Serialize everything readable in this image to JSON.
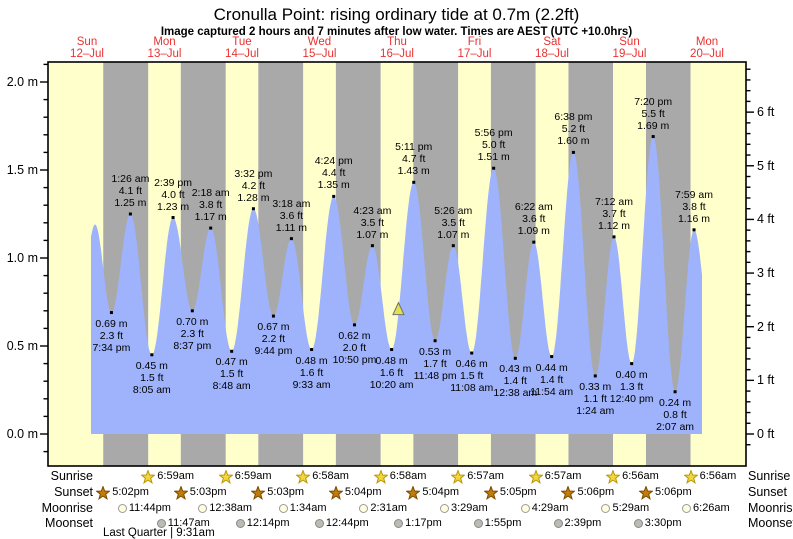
{
  "title": "Cronulla Point: rising  ordinary tide at 0.7m (2.2ft)",
  "subtitle": "Image captured 2 hours and 7 minutes after low water. Times are AEST (UTC +10.0hrs)",
  "colors": {
    "day_band": "#ffffcc",
    "night_band": "#a9a9a9",
    "tide_fill": "#9fb3fc",
    "date_red": "#e83232",
    "frame": "#000000",
    "sunrise_star_fill": "#f2d73c",
    "sunrise_star_stroke": "#b8960b",
    "sunset_star_fill": "#c47c08",
    "sunset_star_stroke": "#7a4a00",
    "moonrise_fill": "#ffffe0",
    "moonrise_stroke": "#999999",
    "moonset_fill": "#bcbcb4",
    "moonset_stroke": "#888888",
    "marker_fill": "#e2e24e",
    "marker_stroke": "#707070"
  },
  "days": [
    {
      "dow": "Sun",
      "date": "12–Jul"
    },
    {
      "dow": "Mon",
      "date": "13–Jul"
    },
    {
      "dow": "Tue",
      "date": "14–Jul"
    },
    {
      "dow": "Wed",
      "date": "15–Jul"
    },
    {
      "dow": "Thu",
      "date": "16–Jul"
    },
    {
      "dow": "Fri",
      "date": "17–Jul"
    },
    {
      "dow": "Sat",
      "date": "18–Jul"
    },
    {
      "dow": "Sun",
      "date": "19–Jul"
    },
    {
      "dow": "Mon",
      "date": "20–Jul"
    }
  ],
  "axes": {
    "left": [
      {
        "value": 0,
        "label": "0.0 m"
      },
      {
        "value": 0.5,
        "label": "0.5 m"
      },
      {
        "value": 1,
        "label": "1.0 m"
      },
      {
        "value": 1.5,
        "label": "1.5 m"
      },
      {
        "value": 2,
        "label": "2.0 m"
      }
    ],
    "right": [
      {
        "value": 0,
        "label": "0 ft"
      },
      {
        "value": 1,
        "label": "1 ft"
      },
      {
        "value": 2,
        "label": "2 ft"
      },
      {
        "value": 3,
        "label": "3 ft"
      },
      {
        "value": 4,
        "label": "4 ft"
      },
      {
        "value": 5,
        "label": "5 ft"
      },
      {
        "value": 6,
        "label": "6 ft"
      }
    ]
  },
  "chart_data": {
    "type": "area",
    "x_unit": "time (days 12-Jul to 20-Jul, AEST)",
    "y_unit_left": "metres",
    "y_unit_right": "feet",
    "ylim_m": [
      -0.18,
      2.11
    ],
    "extremes": [
      {
        "d": 0,
        "t": "2:30 pm",
        "h": 1.19,
        "type": "high",
        "labeled": false
      },
      {
        "d": 0,
        "t": "7:34 pm",
        "h": 0.69,
        "m": "0.69 m",
        "ft": "2.3 ft",
        "type": "low",
        "labeled": true
      },
      {
        "d": 1,
        "t": "1:26 am",
        "h": 1.25,
        "m": "1.25 m",
        "ft": "4.1 ft",
        "type": "high",
        "labeled": true
      },
      {
        "d": 1,
        "t": "8:05 am",
        "h": 0.45,
        "m": "0.45 m",
        "ft": "1.5 ft",
        "type": "low",
        "labeled": true
      },
      {
        "d": 1,
        "t": "2:39 pm",
        "h": 1.23,
        "m": "1.23 m",
        "ft": "4.0 ft",
        "type": "high",
        "labeled": true
      },
      {
        "d": 1,
        "t": "8:37 pm",
        "h": 0.7,
        "m": "0.70 m",
        "ft": "2.3 ft",
        "type": "low",
        "labeled": true
      },
      {
        "d": 2,
        "t": "2:18 am",
        "h": 1.17,
        "m": "1.17 m",
        "ft": "3.8 ft",
        "type": "high",
        "labeled": true
      },
      {
        "d": 2,
        "t": "8:48 am",
        "h": 0.47,
        "m": "0.47 m",
        "ft": "1.5 ft",
        "type": "low",
        "labeled": true
      },
      {
        "d": 2,
        "t": "3:32 pm",
        "h": 1.28,
        "m": "1.28 m",
        "ft": "4.2 ft",
        "type": "high",
        "labeled": true
      },
      {
        "d": 2,
        "t": "9:44 pm",
        "h": 0.67,
        "m": "0.67 m",
        "ft": "2.2 ft",
        "type": "low",
        "labeled": true
      },
      {
        "d": 3,
        "t": "3:18 am",
        "h": 1.11,
        "m": "1.11 m",
        "ft": "3.6 ft",
        "type": "high",
        "labeled": true
      },
      {
        "d": 3,
        "t": "9:33 am",
        "h": 0.48,
        "m": "0.48 m",
        "ft": "1.6 ft",
        "type": "low",
        "labeled": true
      },
      {
        "d": 3,
        "t": "4:24 pm",
        "h": 1.35,
        "m": "1.35 m",
        "ft": "4.4 ft",
        "type": "high",
        "labeled": true
      },
      {
        "d": 3,
        "t": "10:50 pm",
        "h": 0.62,
        "m": "0.62 m",
        "ft": "2.0 ft",
        "type": "low",
        "labeled": true
      },
      {
        "d": 4,
        "t": "4:23 am",
        "h": 1.07,
        "m": "1.07 m",
        "ft": "3.5 ft",
        "type": "high",
        "labeled": true
      },
      {
        "d": 4,
        "t": "10:20 am",
        "h": 0.48,
        "m": "0.48 m",
        "ft": "1.6 ft",
        "type": "low",
        "labeled": true
      },
      {
        "d": 4,
        "t": "5:11 pm",
        "h": 1.43,
        "m": "1.43 m",
        "ft": "4.7 ft",
        "type": "high",
        "labeled": true
      },
      {
        "d": 4,
        "t": "11:48 pm",
        "h": 0.53,
        "m": "0.53 m",
        "ft": "1.7 ft",
        "type": "low",
        "labeled": true
      },
      {
        "d": 5,
        "t": "5:26 am",
        "h": 1.07,
        "m": "1.07 m",
        "ft": "3.5 ft",
        "type": "high",
        "labeled": true
      },
      {
        "d": 5,
        "t": "11:08 am",
        "h": 0.46,
        "m": "0.46 m",
        "ft": "1.5 ft",
        "type": "low",
        "labeled": true
      },
      {
        "d": 5,
        "t": "5:56 pm",
        "h": 1.51,
        "m": "1.51 m",
        "ft": "5.0 ft",
        "type": "high",
        "labeled": true
      },
      {
        "d": 6,
        "t": "12:38 am",
        "h": 0.43,
        "m": "0.43 m",
        "ft": "1.4 ft",
        "type": "low",
        "labeled": true
      },
      {
        "d": 6,
        "t": "6:22 am",
        "h": 1.09,
        "m": "1.09 m",
        "ft": "3.6 ft",
        "type": "high",
        "labeled": true
      },
      {
        "d": 6,
        "t": "11:54 am",
        "h": 0.44,
        "m": "0.44 m",
        "ft": "1.4 ft",
        "type": "low",
        "labeled": true
      },
      {
        "d": 6,
        "t": "6:38 pm",
        "h": 1.6,
        "m": "1.60 m",
        "ft": "5.2 ft",
        "type": "high",
        "labeled": true
      },
      {
        "d": 7,
        "t": "1:24 am",
        "h": 0.33,
        "m": "0.33 m",
        "ft": "1.1 ft",
        "type": "low",
        "labeled": true
      },
      {
        "d": 7,
        "t": "7:12 am",
        "h": 1.12,
        "m": "1.12 m",
        "ft": "3.7 ft",
        "type": "high",
        "labeled": true
      },
      {
        "d": 7,
        "t": "12:40 pm",
        "h": 0.4,
        "m": "0.40 m",
        "ft": "1.3 ft",
        "type": "low",
        "labeled": true
      },
      {
        "d": 7,
        "t": "7:20 pm",
        "h": 1.69,
        "m": "1.69 m",
        "ft": "5.5 ft",
        "type": "high",
        "labeled": true
      },
      {
        "d": 8,
        "t": "2:07 am",
        "h": 0.24,
        "m": "0.24 m",
        "ft": "0.8 ft",
        "type": "low",
        "labeled": true
      },
      {
        "d": 8,
        "t": "7:59 am",
        "h": 1.16,
        "m": "1.16 m",
        "ft": "3.8 ft",
        "type": "high",
        "labeled": true
      }
    ],
    "edge_pads": [
      {
        "d": 0,
        "t": "8:10 am",
        "h": 0.45
      },
      {
        "d": 8,
        "t": "2:00 pm",
        "h": 0.45
      }
    ],
    "capture_marker": {
      "d": 4,
      "t": "12:27 pm"
    }
  },
  "astro": {
    "row_labels": [
      "Sunrise",
      "Sunset",
      "Moonrise",
      "Moonset"
    ],
    "sunrise": [
      {
        "d": 1,
        "t": "6:59am"
      },
      {
        "d": 2,
        "t": "6:59am"
      },
      {
        "d": 3,
        "t": "6:58am"
      },
      {
        "d": 4,
        "t": "6:58am"
      },
      {
        "d": 5,
        "t": "6:57am"
      },
      {
        "d": 6,
        "t": "6:57am"
      },
      {
        "d": 7,
        "t": "6:56am"
      },
      {
        "d": 8,
        "t": "6:56am"
      }
    ],
    "sunset": [
      {
        "d": 0,
        "t": "5:02pm"
      },
      {
        "d": 1,
        "t": "5:03pm"
      },
      {
        "d": 2,
        "t": "5:03pm"
      },
      {
        "d": 3,
        "t": "5:04pm"
      },
      {
        "d": 4,
        "t": "5:04pm"
      },
      {
        "d": 5,
        "t": "5:05pm"
      },
      {
        "d": 6,
        "t": "5:06pm"
      },
      {
        "d": 7,
        "t": "5:06pm"
      }
    ],
    "moonrise": [
      {
        "d": 0,
        "t": "11:44pm"
      },
      {
        "d": 2,
        "t": "12:38am"
      },
      {
        "d": 3,
        "t": "1:34am"
      },
      {
        "d": 4,
        "t": "2:31am"
      },
      {
        "d": 5,
        "t": "3:29am"
      },
      {
        "d": 6,
        "t": "4:29am"
      },
      {
        "d": 7,
        "t": "5:29am"
      },
      {
        "d": 8,
        "t": "6:26am"
      }
    ],
    "moonset": [
      {
        "d": 1,
        "t": "11:47am"
      },
      {
        "d": 2,
        "t": "12:14pm"
      },
      {
        "d": 3,
        "t": "12:44pm"
      },
      {
        "d": 4,
        "t": "1:17pm"
      },
      {
        "d": 5,
        "t": "1:55pm"
      },
      {
        "d": 6,
        "t": "2:39pm"
      },
      {
        "d": 7,
        "t": "3:30pm"
      }
    ],
    "moon_phase": "Last Quarter | 9:31am"
  }
}
